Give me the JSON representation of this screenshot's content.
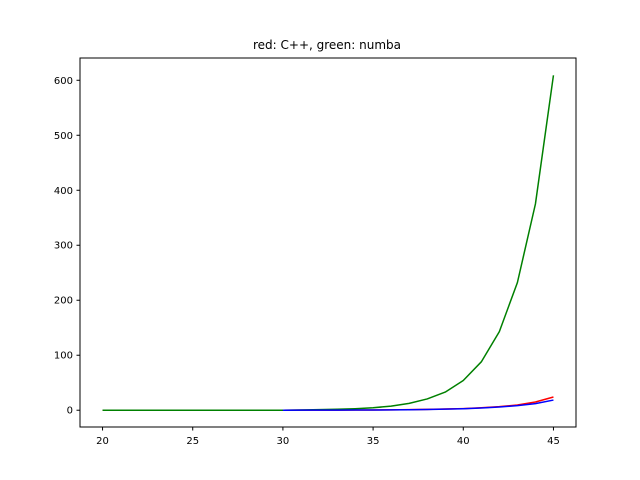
{
  "chart_data": {
    "type": "line",
    "title": "red: C++, green: numba",
    "xlabel": "",
    "ylabel": "",
    "xlim": [
      18.75,
      46.25
    ],
    "ylim": [
      -30.5,
      640.5
    ],
    "xticks": [
      20,
      25,
      30,
      35,
      40,
      45
    ],
    "yticks": [
      0,
      100,
      200,
      300,
      400,
      500,
      600
    ],
    "grid": false,
    "series": [
      {
        "color": "#ff0000",
        "x": [
          20,
          21,
          22,
          23,
          24,
          25,
          26,
          27,
          28,
          29,
          30,
          31,
          32,
          33,
          34,
          35,
          36,
          37,
          38,
          39,
          40,
          41,
          42,
          43,
          44,
          45
        ],
        "y": [
          0,
          0,
          0,
          0,
          0,
          0,
          0,
          0,
          0,
          0,
          0,
          0.1,
          0.1,
          0.2,
          0.3,
          0.5,
          0.7,
          1.1,
          1.5,
          2.2,
          3,
          4.5,
          6.5,
          9.5,
          15,
          24
        ]
      },
      {
        "color": "#008000",
        "x": [
          20,
          21,
          22,
          23,
          24,
          25,
          26,
          27,
          28,
          29,
          30,
          31,
          32,
          33,
          34,
          35,
          36,
          37,
          38,
          39,
          40,
          41,
          42,
          43,
          44,
          45
        ],
        "y": [
          0,
          0,
          0,
          0,
          0,
          0,
          0,
          0,
          0,
          0,
          0,
          0.5,
          1,
          1.7,
          2.8,
          4.5,
          7.5,
          12.5,
          20.5,
          33,
          54,
          88,
          143,
          232,
          375,
          609
        ]
      },
      {
        "color": "#0000ff",
        "x": [
          30,
          31,
          32,
          33,
          34,
          35,
          36,
          37,
          38,
          39,
          40,
          41,
          42,
          43,
          44,
          45
        ],
        "y": [
          0,
          0.1,
          0.1,
          0.2,
          0.3,
          0.4,
          0.6,
          0.9,
          1.3,
          1.9,
          2.8,
          4,
          5.8,
          8.3,
          12,
          18.5
        ]
      }
    ]
  }
}
